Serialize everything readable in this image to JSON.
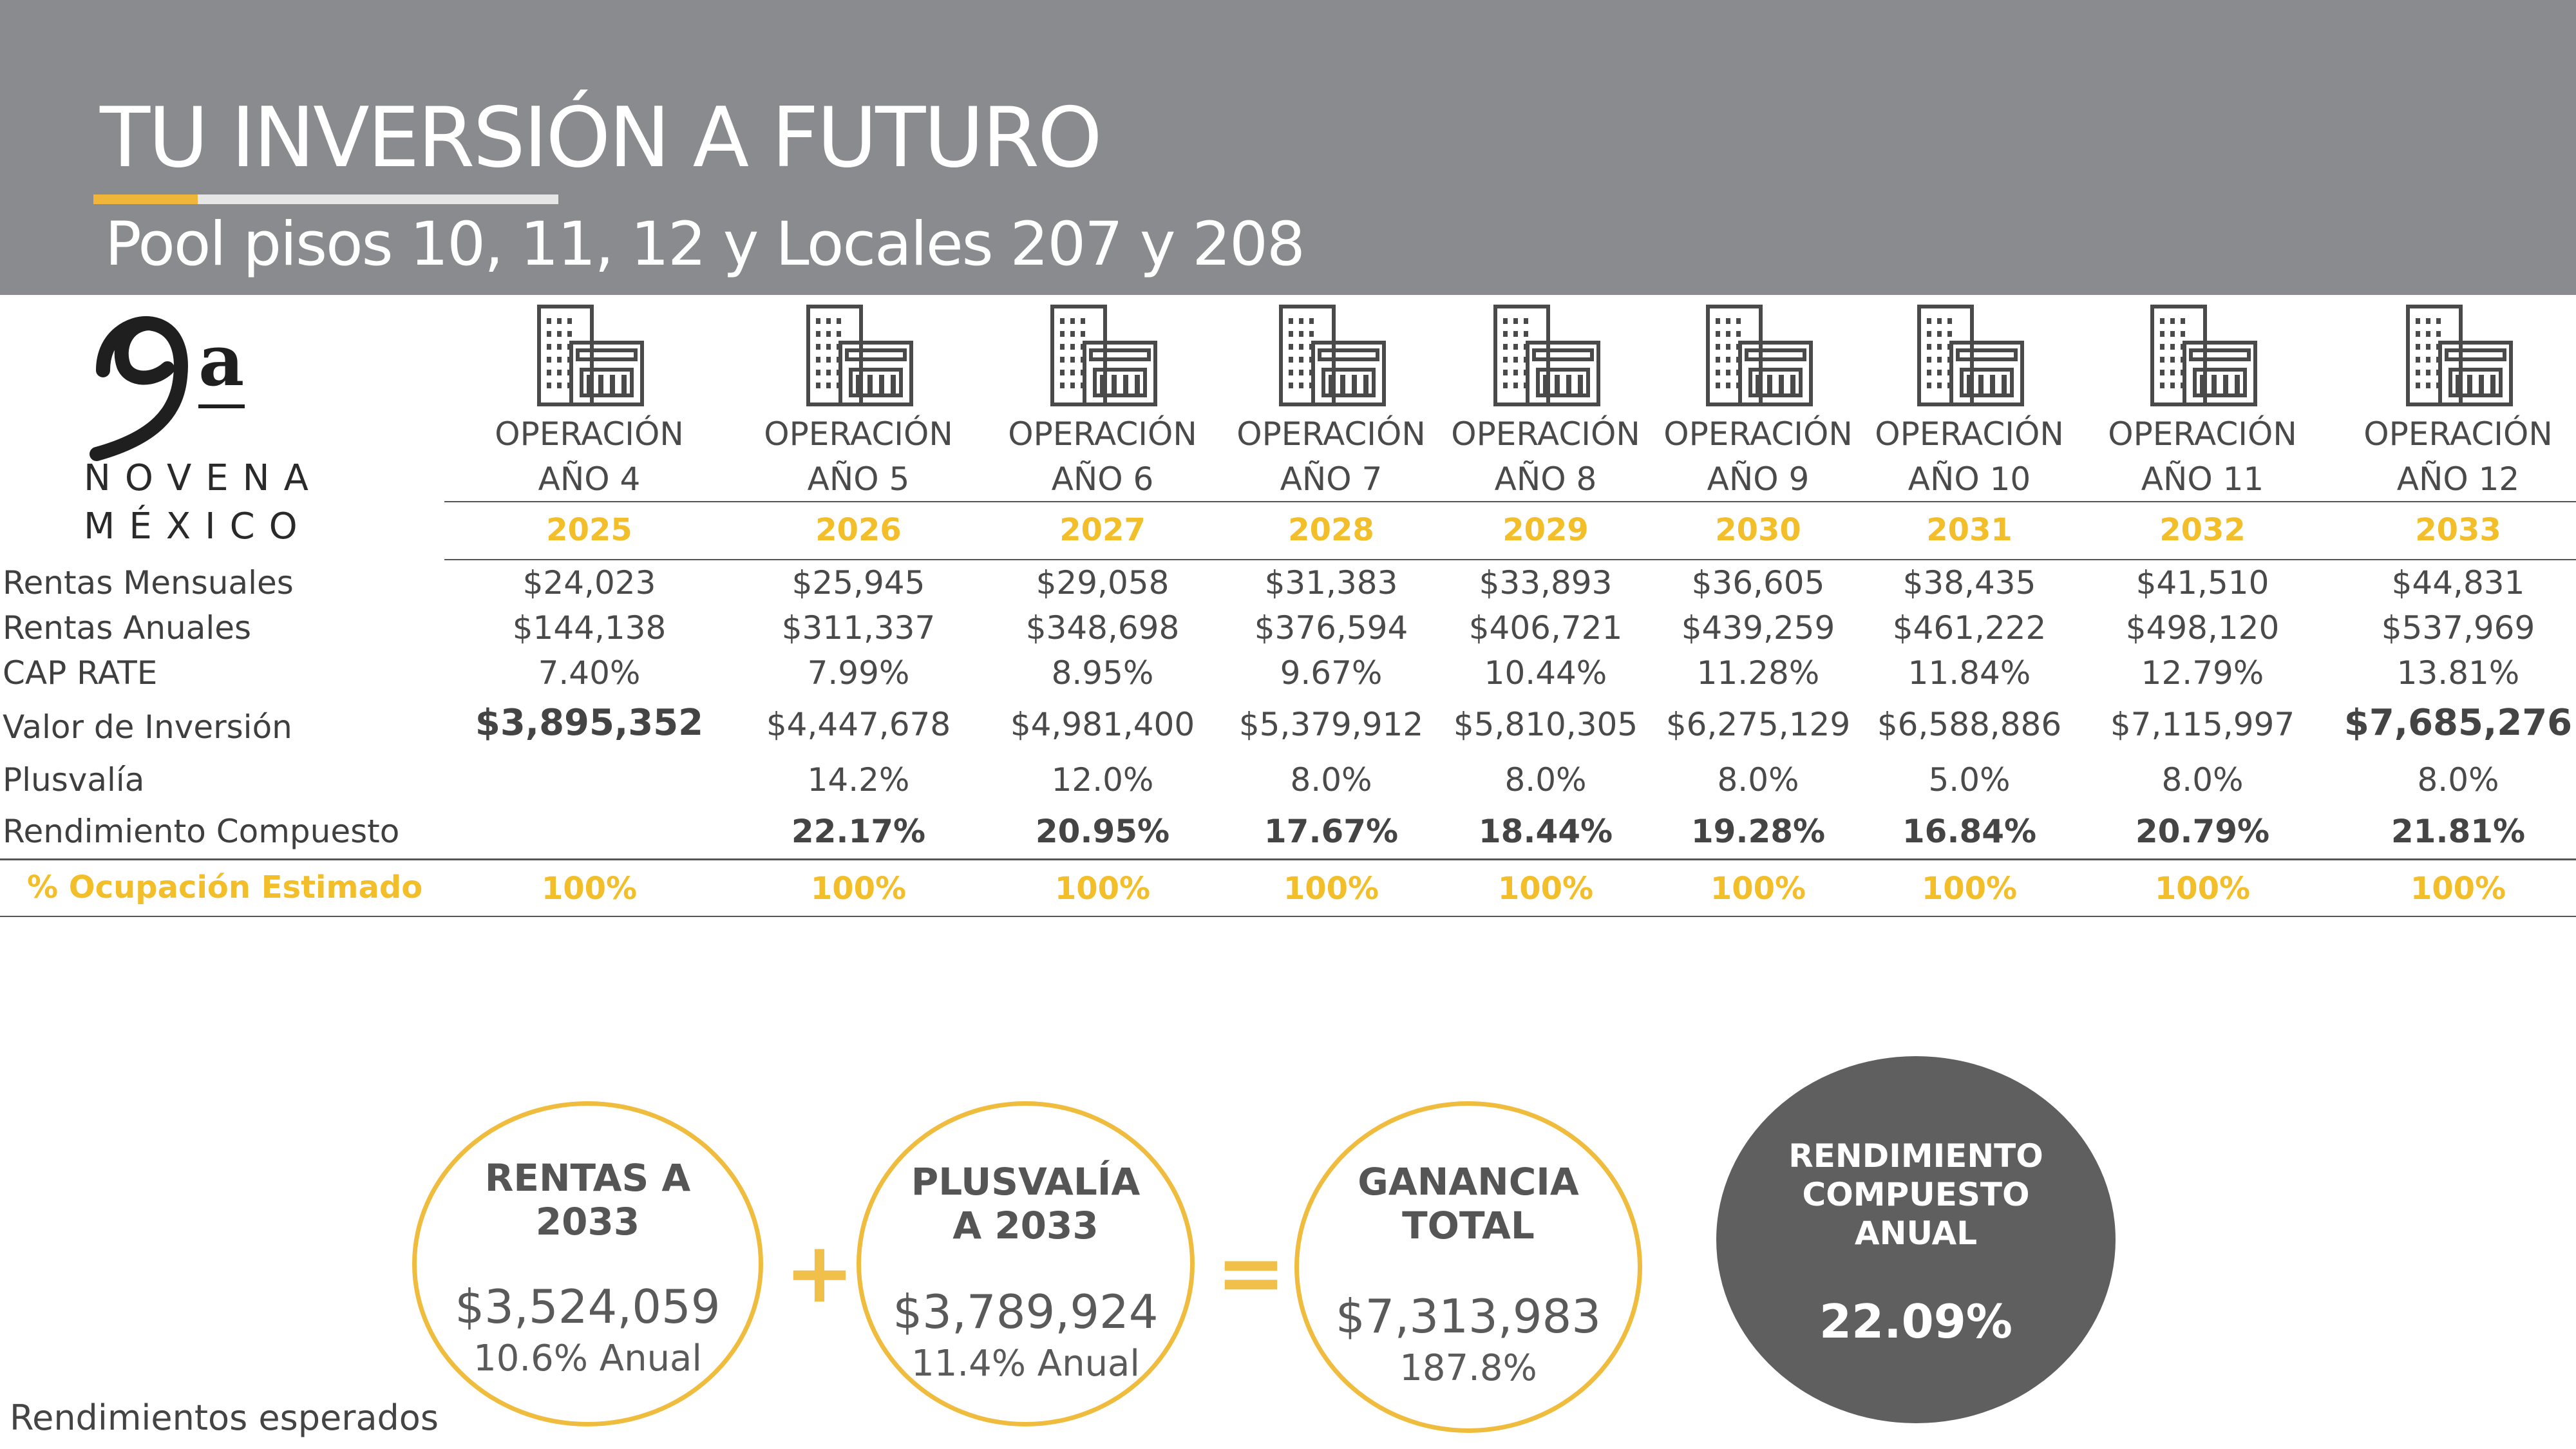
{
  "header": {
    "title": "TU INVERSIÓN A FUTURO",
    "subtitle": "Pool pisos 10, 11, 12 y Locales 207 y 208"
  },
  "logo": {
    "glyph": "9a",
    "line1": "NOVENA",
    "line2": "MÉXICO"
  },
  "icon": "building-icon",
  "columns": [
    {
      "op": "OPERACIÓN",
      "anio": "AÑO 4",
      "year": "2025",
      "rm": "$24,023",
      "ra": "$144,138",
      "cap": "7.40%",
      "valor": "$3,895,352",
      "plus": "",
      "rend": "",
      "occ": "100%"
    },
    {
      "op": "OPERACIÓN",
      "anio": "AÑO 5",
      "year": "2026",
      "rm": "$25,945",
      "ra": "$311,337",
      "cap": "7.99%",
      "valor": "$4,447,678",
      "plus": "14.2%",
      "rend": "22.17%",
      "occ": "100%"
    },
    {
      "op": "OPERACIÓN",
      "anio": "AÑO 6",
      "year": "2027",
      "rm": "$29,058",
      "ra": "$348,698",
      "cap": "8.95%",
      "valor": "$4,981,400",
      "plus": "12.0%",
      "rend": "20.95%",
      "occ": "100%"
    },
    {
      "op": "OPERACIÓN",
      "anio": "AÑO 7",
      "year": "2028",
      "rm": "$31,383",
      "ra": "$376,594",
      "cap": "9.67%",
      "valor": "$5,379,912",
      "plus": "8.0%",
      "rend": "17.67%",
      "occ": "100%"
    },
    {
      "op": "OPERACIÓN",
      "anio": "AÑO 8",
      "year": "2029",
      "rm": "$33,893",
      "ra": "$406,721",
      "cap": "10.44%",
      "valor": "$5,810,305",
      "plus": "8.0%",
      "rend": "18.44%",
      "occ": "100%"
    },
    {
      "op": "OPERACIÓN",
      "anio": "AÑO 9",
      "year": "2030",
      "rm": "$36,605",
      "ra": "$439,259",
      "cap": "11.28%",
      "valor": "$6,275,129",
      "plus": "8.0%",
      "rend": "19.28%",
      "occ": "100%"
    },
    {
      "op": "OPERACIÓN",
      "anio": "AÑO 10",
      "year": "2031",
      "rm": "$38,435",
      "ra": "$461,222",
      "cap": "11.84%",
      "valor": "$6,588,886",
      "plus": "5.0%",
      "rend": "16.84%",
      "occ": "100%"
    },
    {
      "op": "OPERACIÓN",
      "anio": "AÑO 11",
      "year": "2032",
      "rm": "$41,510",
      "ra": "$498,120",
      "cap": "12.79%",
      "valor": "$7,115,997",
      "plus": "8.0%",
      "rend": "20.79%",
      "occ": "100%"
    },
    {
      "op": "OPERACIÓN",
      "anio": "AÑO 12",
      "year": "2033",
      "rm": "$44,831",
      "ra": "$537,969",
      "cap": "13.81%",
      "valor": "$7,685,276",
      "plus": "8.0%",
      "rend": "21.81%",
      "occ": "100%"
    }
  ],
  "row_labels": {
    "rm": "Rentas Mensuales",
    "ra": "Rentas Anuales",
    "cap": "CAP RATE",
    "valor": "Valor de Inversión",
    "plus": "Plusvalía",
    "rend": "Rendimiento Compuesto",
    "occ": "% Ocupación Estimado"
  },
  "summary": {
    "rentas": {
      "t1": "RENTAS A",
      "t2": "2033",
      "value": "$3,524,059",
      "sub": "10.6% Anual"
    },
    "plus_sign": "+",
    "plusvalia": {
      "t1": "PLUSVALÍA",
      "t2": "A 2033",
      "value": "$3,789,924",
      "sub": "11.4% Anual"
    },
    "eq_sign": "=",
    "ganancia": {
      "t1": "GANANCIA",
      "t2": "TOTAL",
      "value": "$7,313,983",
      "sub": "187.8%"
    },
    "rendimiento": {
      "t1": "RENDIMIENTO",
      "t2": "COMPUESTO",
      "t3": "ANUAL",
      "value": "22.09%"
    }
  },
  "footnote": "Rendimientos esperados",
  "colors": {
    "header_bg": "#898b8e",
    "accent": "#f2be2a",
    "circle_border": "#efbc3d",
    "dark_circle": "#5f5f5f"
  }
}
